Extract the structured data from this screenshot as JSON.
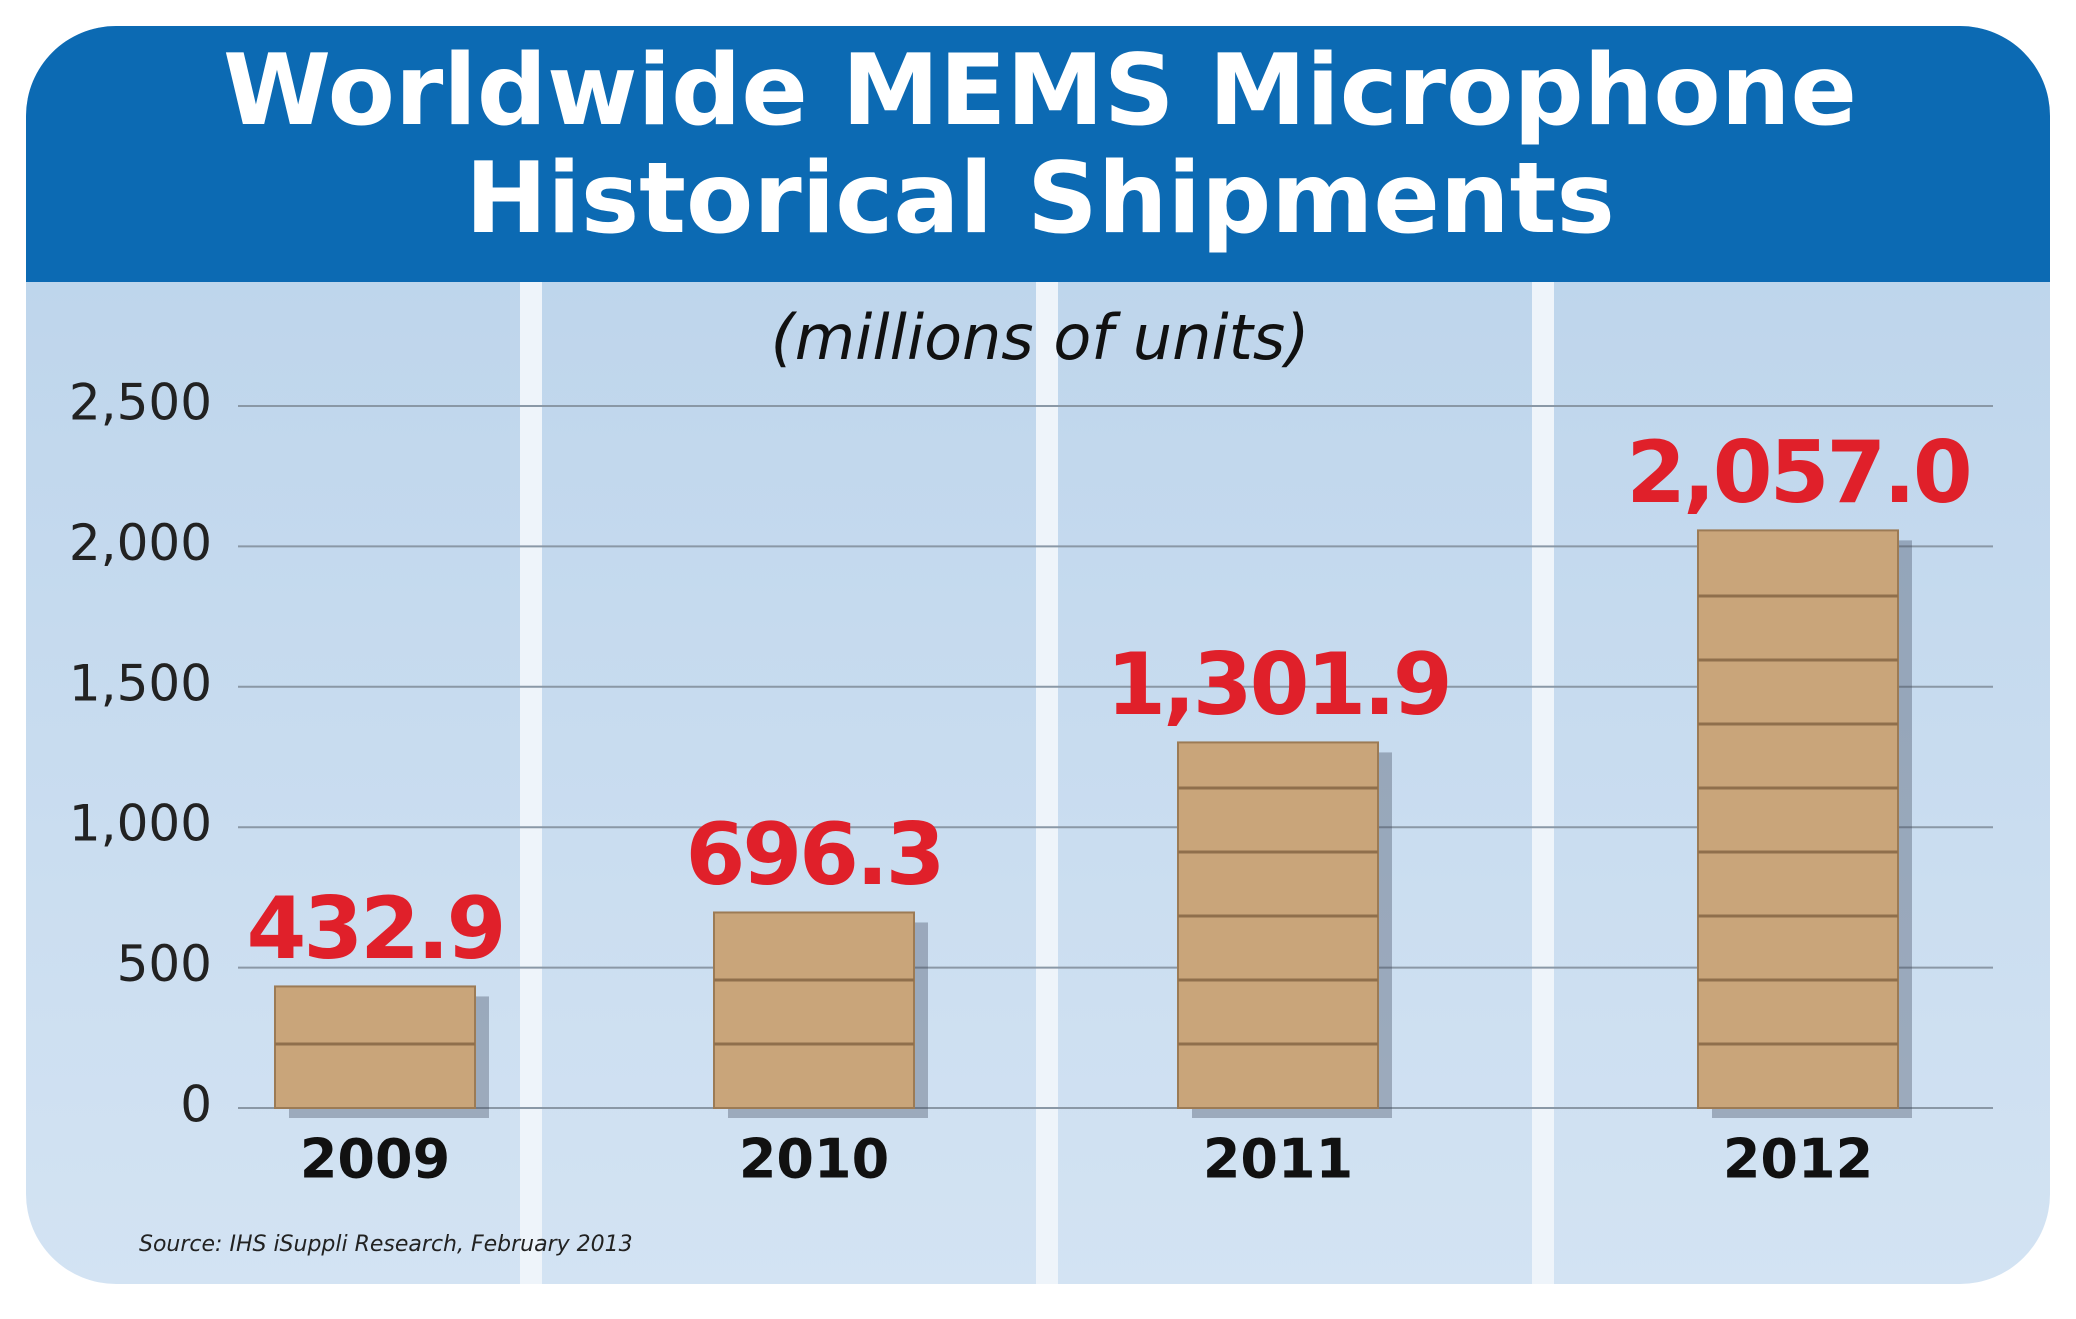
{
  "chart_data": {
    "type": "bar",
    "title": [
      "Worldwide MEMS Microphone",
      "Historical Shipments"
    ],
    "subtitle": "(millions of units)",
    "categories": [
      "2009",
      "2010",
      "2011",
      "2012"
    ],
    "values": [
      432.9,
      696.3,
      1301.9,
      2057.0
    ],
    "value_labels": [
      "432.9",
      "696.3",
      "1,301.9",
      "2,057.0"
    ],
    "color": "#c9a57a",
    "label_color": "#e0202a",
    "ylim": [
      0,
      2500
    ],
    "yticks": [
      0,
      500,
      {
        "value": 1000,
        "label": "1,000"
      },
      {
        "value": 1500,
        "label": "1,500"
      },
      {
        "value": 2000,
        "label": "2,000"
      },
      {
        "value": 2500,
        "label": "2,500"
      }
    ],
    "grid": true,
    "source": "Source: IHS iSuppli Research, February 2013"
  }
}
